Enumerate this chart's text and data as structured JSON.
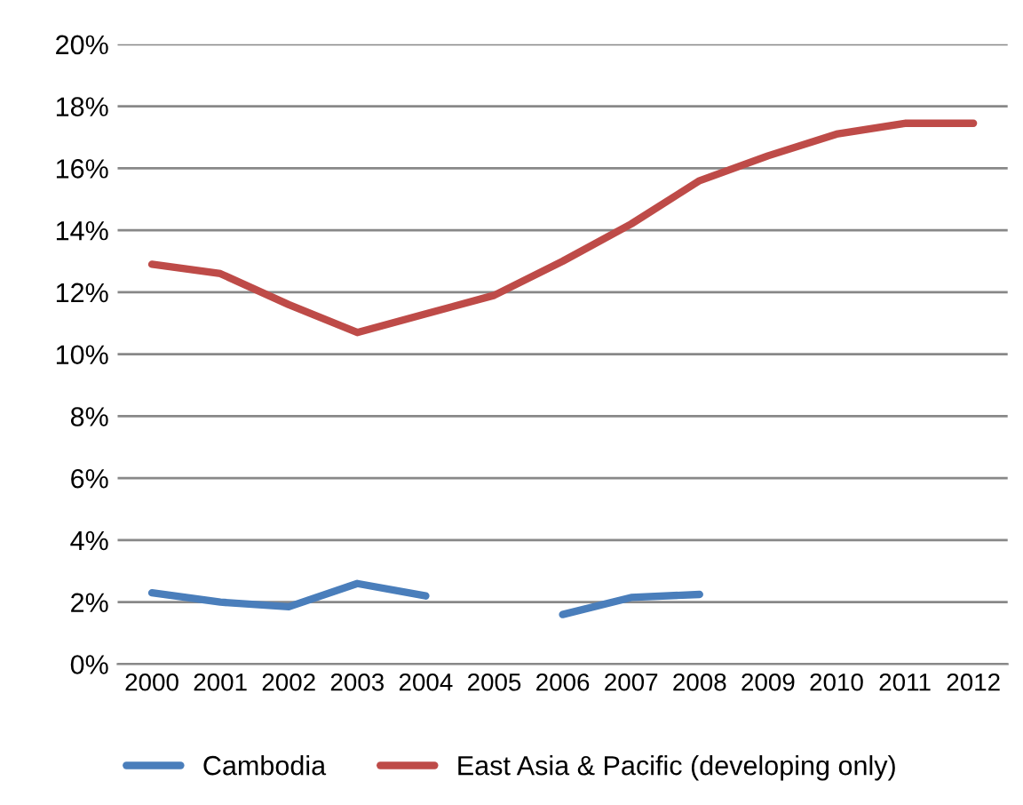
{
  "chart_data": {
    "type": "line",
    "categories": [
      "2000",
      "2001",
      "2002",
      "2003",
      "2004",
      "2005",
      "2006",
      "2007",
      "2008",
      "2009",
      "2010",
      "2011",
      "2012"
    ],
    "series": [
      {
        "name": "Cambodia",
        "color": "#4a7ebb",
        "values": [
          2.3,
          2.0,
          1.85,
          2.6,
          2.2,
          null,
          1.6,
          2.15,
          2.25,
          null,
          null,
          null,
          null
        ]
      },
      {
        "name": "East Asia & Pacific (developing only)",
        "color": "#be4b48",
        "values": [
          12.9,
          12.6,
          11.6,
          10.7,
          11.3,
          11.9,
          13.0,
          14.2,
          15.6,
          16.4,
          17.1,
          17.45,
          17.45
        ]
      }
    ],
    "ylim": [
      0,
      20
    ],
    "yticks": [
      {
        "value": 0,
        "label": "0%"
      },
      {
        "value": 2,
        "label": "2%"
      },
      {
        "value": 4,
        "label": "4%"
      },
      {
        "value": 6,
        "label": "6%"
      },
      {
        "value": 8,
        "label": "8%"
      },
      {
        "value": 10,
        "label": "10%"
      },
      {
        "value": 12,
        "label": "12%"
      },
      {
        "value": 14,
        "label": "14%"
      },
      {
        "value": 16,
        "label": "16%"
      },
      {
        "value": 18,
        "label": "18%"
      },
      {
        "value": 20,
        "label": "20%"
      }
    ],
    "grid": "y",
    "legend": "bottom",
    "marker": "none",
    "line_style": "solid"
  }
}
